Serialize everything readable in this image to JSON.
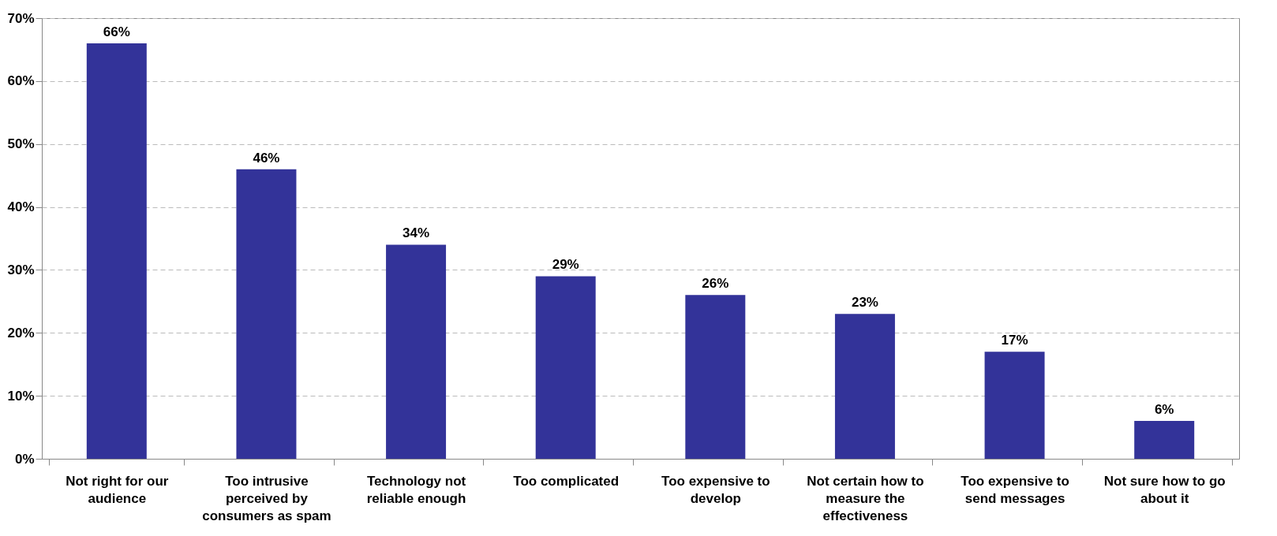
{
  "chart_data": {
    "type": "bar",
    "categories": [
      "Not right for our audience",
      "Too intrusive perceived by consumers as spam",
      "Technology not reliable enough",
      "Too complicated",
      "Too expensive to develop",
      "Not certain how to measure the effectiveness",
      "Too expensive to send messages",
      "Not sure how to go about it"
    ],
    "values": [
      66,
      46,
      34,
      29,
      26,
      23,
      17,
      6
    ],
    "color": "#333399",
    "value_labels": [
      "66%",
      "46%",
      "34%",
      "29%",
      "26%",
      "23%",
      "17%",
      "6%"
    ],
    "ylim": [
      0,
      70
    ],
    "yticks": [
      {
        "value": 0,
        "label": "0%"
      },
      {
        "value": 10,
        "label": "10%"
      },
      {
        "value": 20,
        "label": "20%"
      },
      {
        "value": 30,
        "label": "30%"
      },
      {
        "value": 40,
        "label": "40%"
      },
      {
        "value": 50,
        "label": "50%"
      },
      {
        "value": 60,
        "label": "60%"
      },
      {
        "value": 70,
        "label": "70%"
      }
    ],
    "grid": "y"
  }
}
